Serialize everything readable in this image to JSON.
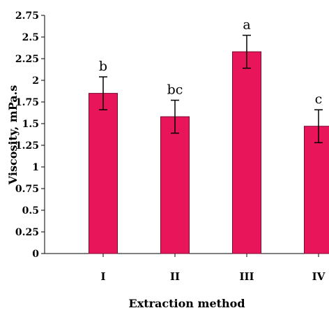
{
  "chart_data": {
    "type": "bar",
    "title": "",
    "xlabel": "Extraction method",
    "ylabel": "Viscosity, mPa.s",
    "categories": [
      "I",
      "II",
      "III",
      "IV"
    ],
    "values": [
      1.85,
      1.58,
      2.33,
      1.47
    ],
    "errors": [
      0.19,
      0.19,
      0.19,
      0.19
    ],
    "significance_letters": [
      "b",
      "bc",
      "a",
      "c"
    ],
    "ylim": [
      0,
      2.75
    ],
    "yticks": [
      "0",
      "0.25",
      "0.5",
      "0.75",
      "1",
      "1.25",
      "1.5",
      "1.75",
      "2",
      "2.25",
      "2.5",
      "2.75"
    ],
    "grid": false,
    "legend": "none",
    "colors": {
      "bar": "#e8155a",
      "bar_edge": "#7a0a2e",
      "error_bar": "#000000",
      "axis": "#000000"
    }
  }
}
